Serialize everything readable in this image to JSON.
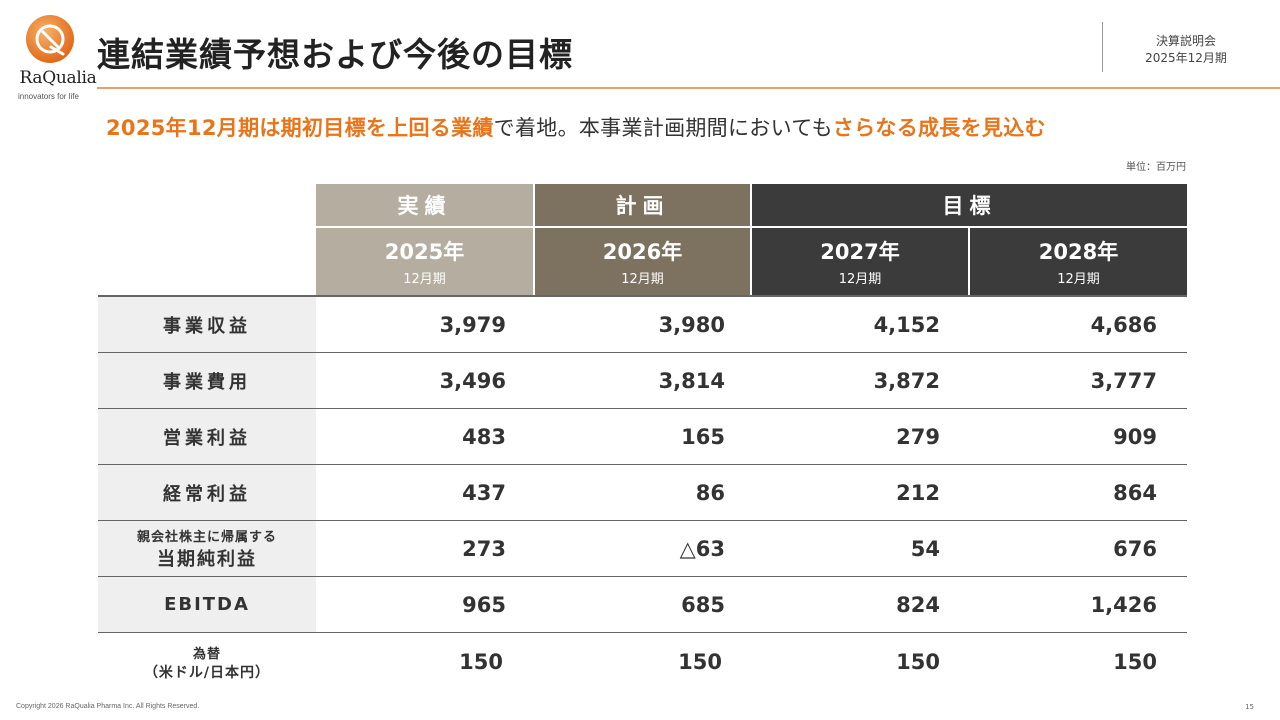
{
  "brand": {
    "name": "RaQualia",
    "tagline": "innovators for life",
    "accent": "#e8751a",
    "orange_line": "#e6a06b"
  },
  "header": {
    "title": "連結業績予想および今後の目標",
    "context_line1": "決算説明会",
    "context_line2": "2025年12月期"
  },
  "headline": {
    "part1": "2025年12月期は期初目標を上回る業績",
    "part2": "で着地。本事業計画期間においても",
    "part3": "さらなる成長を見込む"
  },
  "unit": "単位：百万円",
  "table": {
    "groups": {
      "actual": "実績",
      "plan": "計画",
      "target": "目標"
    },
    "colors": {
      "actual": "#b5ada0",
      "plan": "#7d725f",
      "target": "#3b3b3b"
    },
    "years": [
      {
        "year": "2025年",
        "period": "12月期"
      },
      {
        "year": "2026年",
        "period": "12月期"
      },
      {
        "year": "2027年",
        "period": "12月期"
      },
      {
        "year": "2028年",
        "period": "12月期"
      }
    ],
    "rows": [
      {
        "label": "事業収益",
        "values": [
          "3,979",
          "3,980",
          "4,152",
          "4,686"
        ]
      },
      {
        "label": "事業費用",
        "values": [
          "3,496",
          "3,814",
          "3,872",
          "3,777"
        ]
      },
      {
        "label": "営業利益",
        "values": [
          "483",
          "165",
          "279",
          "909"
        ]
      },
      {
        "label": "経常利益",
        "values": [
          "437",
          "86",
          "212",
          "864"
        ]
      },
      {
        "label_small": "親会社株主に帰属する",
        "label": "当期純利益",
        "values": [
          "273",
          "△63",
          "54",
          "676"
        ]
      },
      {
        "label": "EBITDA",
        "values": [
          "965",
          "685",
          "824",
          "1,426"
        ]
      },
      {
        "label_small": "為替",
        "label": "（米ドル/日本円）",
        "values": [
          "150",
          "150",
          "150",
          "150"
        ]
      }
    ]
  },
  "footer": {
    "copyright": "Copyright 2026 RaQualia Pharma Inc. All Rights Reserved.",
    "page": "15"
  }
}
